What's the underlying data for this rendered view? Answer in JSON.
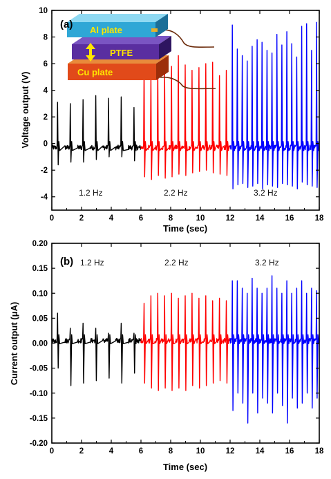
{
  "colors": {
    "seg1": "#000000",
    "seg2": "#ff0000",
    "seg3": "#0000ff",
    "al": "#2fa7d6",
    "ptfe": "#5a2ea0",
    "cu": "#e14a1a",
    "wire": "#6b2a0a"
  },
  "chart_data": [
    {
      "type": "line",
      "panel_label": "(a)",
      "xlabel": "Time (sec)",
      "ylabel": "Voltage output (V)",
      "xlim": [
        0,
        18
      ],
      "ylim": [
        -5,
        10
      ],
      "x_ticks": [
        0,
        2,
        4,
        6,
        8,
        10,
        12,
        14,
        16,
        18
      ],
      "y_ticks": [
        -4,
        -2,
        0,
        2,
        4,
        6,
        8,
        10
      ],
      "baseline": -0.3,
      "segments": [
        {
          "name": "1.2 Hz",
          "t_start": 0,
          "t_end": 6,
          "freq_hz": 1.2,
          "peak_max": [
            3.1,
            3.0,
            3.3,
            3.6,
            3.4,
            3.5,
            2.7
          ],
          "peak_min": [
            -1.6,
            -1.4,
            -1.4,
            -1.2,
            -1.0,
            -1.0,
            -1.3
          ]
        },
        {
          "name": "2.2 Hz",
          "t_start": 6,
          "t_end": 12,
          "freq_hz": 2.2,
          "peak_max": [
            5.9,
            5.2,
            5.9,
            5.5,
            5.8,
            6.6,
            5.9,
            5.5,
            5.7,
            6.0,
            6.1,
            5.1,
            5.5
          ],
          "peak_min": [
            -2.5,
            -2.7,
            -2.4,
            -2.6,
            -2.5,
            -2.3,
            -2.4,
            -2.2,
            -2.1,
            -2.0,
            -2.2,
            -2.3,
            -2.4
          ]
        },
        {
          "name": "3.2 Hz",
          "t_start": 12,
          "t_end": 18,
          "freq_hz": 3.2,
          "peak_max": [
            8.9,
            7.1,
            6.6,
            6.2,
            7.3,
            7.8,
            7.6,
            7.0,
            6.8,
            8.2,
            7.4,
            8.4,
            7.5,
            6.5,
            8.8,
            9.0,
            7.0,
            9.1
          ],
          "peak_min": [
            -3.4,
            -3.1,
            -3.0,
            -3.3,
            -3.2,
            -3.0,
            -3.4,
            -3.1,
            -3.2,
            -3.3,
            -3.0,
            -3.1,
            -3.2,
            -3.4,
            -2.9,
            -3.1,
            -3.2,
            -3.3
          ]
        }
      ],
      "annotations": [
        "1.2 Hz",
        "2.2 Hz",
        "3.2 Hz"
      ],
      "inset": {
        "top_label": "Al plate",
        "middle_label": "PTFE",
        "bottom_label": "Cu plate"
      }
    },
    {
      "type": "line",
      "panel_label": "(b)",
      "xlabel": "Time (sec)",
      "ylabel": "Current output (μA)",
      "xlim": [
        0,
        18
      ],
      "ylim": [
        -0.2,
        0.2
      ],
      "x_ticks": [
        0,
        2,
        4,
        6,
        8,
        10,
        12,
        14,
        16,
        18
      ],
      "y_ticks": [
        -0.2,
        -0.15,
        -0.1,
        -0.05,
        0.0,
        0.05,
        0.1,
        0.15,
        0.2
      ],
      "baseline": 0.005,
      "segments": [
        {
          "name": "1.2 Hz",
          "t_start": 0,
          "t_end": 6,
          "freq_hz": 1.2,
          "peak_max": [
            0.06,
            0.03,
            0.04,
            0.03,
            0.02,
            0.04,
            0.02
          ],
          "peak_min": [
            -0.05,
            -0.085,
            -0.08,
            -0.075,
            -0.07,
            -0.08,
            -0.06
          ]
        },
        {
          "name": "2.2 Hz",
          "t_start": 6,
          "t_end": 12,
          "freq_hz": 2.2,
          "peak_max": [
            0.08,
            0.095,
            0.1,
            0.095,
            0.1,
            0.09,
            0.095,
            0.1,
            0.09,
            0.095,
            0.085,
            0.09,
            0.085
          ],
          "peak_min": [
            -0.08,
            -0.09,
            -0.095,
            -0.09,
            -0.095,
            -0.09,
            -0.095,
            -0.085,
            -0.09,
            -0.085,
            -0.08,
            -0.075,
            -0.08
          ]
        },
        {
          "name": "3.2 Hz",
          "t_start": 12,
          "t_end": 18,
          "freq_hz": 3.2,
          "peak_max": [
            0.125,
            0.125,
            0.11,
            0.1,
            0.13,
            0.11,
            0.1,
            0.11,
            0.135,
            0.11,
            0.1,
            0.125,
            0.1,
            0.11,
            0.125,
            0.1,
            0.11,
            0.105
          ],
          "peak_min": [
            -0.135,
            -0.1,
            -0.12,
            -0.16,
            -0.1,
            -0.14,
            -0.11,
            -0.12,
            -0.14,
            -0.1,
            -0.125,
            -0.16,
            -0.11,
            -0.13,
            -0.12,
            -0.1,
            -0.13,
            -0.11
          ]
        }
      ],
      "annotations": [
        "1.2 Hz",
        "2.2 Hz",
        "3.2 Hz"
      ]
    }
  ]
}
